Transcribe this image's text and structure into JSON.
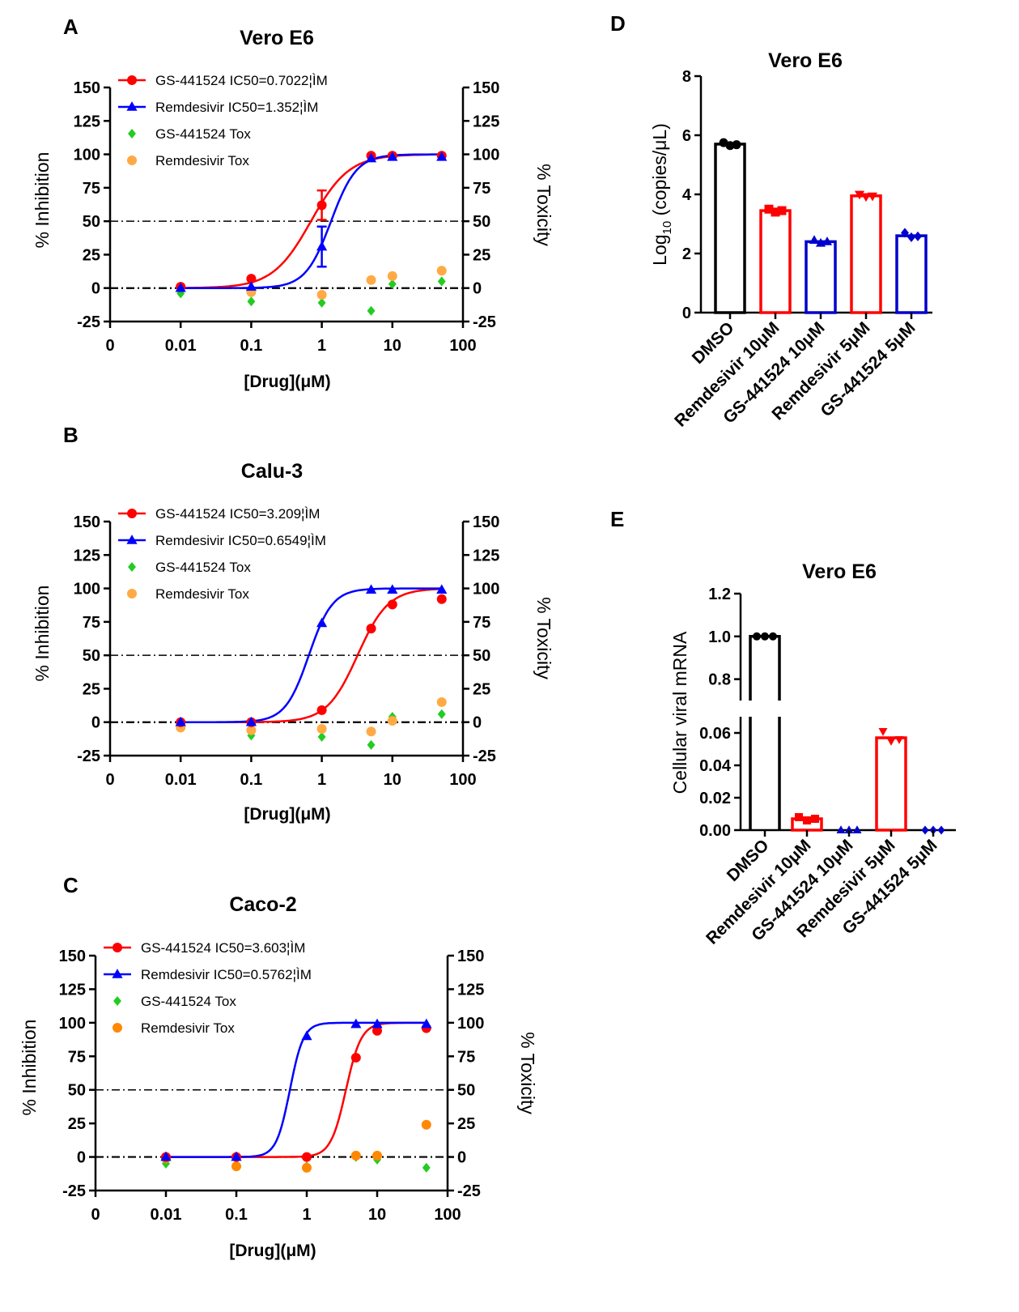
{
  "panels": [
    {
      "letter": "A",
      "title": "Vero E6",
      "xlabel": "[Drug](μM)",
      "ylabel_left": "% Inhibition",
      "ylabel_right": "% Toxicity",
      "legend": [
        {
          "label": "GS-441524 IC50=0.7022¦ÌM",
          "color": "#ff0000",
          "marker": "circle",
          "line": true
        },
        {
          "label": "Remdesivir  IC50=1.352¦ÌM",
          "color": "#0000ff",
          "marker": "triangle",
          "line": true
        },
        {
          "label": "GS-441524 Tox",
          "color": "#22cc22",
          "marker": "diamond",
          "line": false
        },
        {
          "label": "Remdesivir Tox",
          "color": "#ffaa44",
          "marker": "circle",
          "line": false
        }
      ]
    },
    {
      "letter": "B",
      "title": "Calu-3",
      "xlabel": "[Drug](μM)",
      "ylabel_left": "% Inhibition",
      "ylabel_right": "% Toxicity",
      "legend": [
        {
          "label": "GS-441524 IC50=3.209¦ÌM",
          "color": "#ff0000",
          "marker": "circle",
          "line": true
        },
        {
          "label": "Remdesivir  IC50=0.6549¦ÌM",
          "color": "#0000ff",
          "marker": "triangle",
          "line": true
        },
        {
          "label": "GS-441524 Tox",
          "color": "#22cc22",
          "marker": "diamond",
          "line": false
        },
        {
          "label": "Remdesivir Tox",
          "color": "#ffaa44",
          "marker": "circle",
          "line": false
        }
      ]
    },
    {
      "letter": "C",
      "title": "Caco-2",
      "xlabel": "[Drug](μM)",
      "ylabel_left": "% Inhibition",
      "ylabel_right": "% Toxicity",
      "legend": [
        {
          "label": "GS-441524 IC50=3.603¦ÌM",
          "color": "#ff0000",
          "marker": "circle",
          "line": true
        },
        {
          "label": "Remdesivir  IC50=0.5762¦ÌM",
          "color": "#0000ff",
          "marker": "triangle",
          "line": true
        },
        {
          "label": "GS-441524 Tox",
          "color": "#22cc22",
          "marker": "diamond",
          "line": false
        },
        {
          "label": "Remdesivir Tox",
          "color": "#ff8800",
          "marker": "circle",
          "line": false
        }
      ]
    },
    {
      "letter": "D",
      "title": "Vero E6",
      "ylabel": "Log10 (copies/μL)",
      "ylabel_parts": {
        "a": "Log",
        "sub": "10",
        "b": " (copies/μL)"
      }
    },
    {
      "letter": "E",
      "title": "Vero E6",
      "ylabel": "Cellular viral mRNA"
    }
  ],
  "chart_data": [
    {
      "type": "scatter",
      "title": "Vero E6",
      "x_scale": "log",
      "x_ticks": [
        "0",
        "0.01",
        "0.1",
        "1",
        "10",
        "100"
      ],
      "ylim": [
        -25,
        150
      ],
      "y_ticks": [
        "-25",
        "0",
        "25",
        "50",
        "75",
        "100",
        "125",
        "150"
      ],
      "y2_ticks": [
        "-25",
        "0",
        "25",
        "50",
        "75",
        "100",
        "125",
        "150"
      ],
      "reference_lines": [
        0,
        50
      ],
      "series": [
        {
          "name": "GS-441524 IC50=0.7022¦ÌM",
          "color": "#ff0000",
          "marker": "circle",
          "x": [
            0.01,
            0.1,
            1,
            5,
            10,
            50
          ],
          "y": [
            1,
            7,
            62,
            99,
            99,
            99
          ],
          "err": [
            0,
            0,
            11,
            0,
            0,
            0
          ],
          "fit": {
            "ic50": 0.7022,
            "hill": 1.6
          }
        },
        {
          "name": "Remdesivir  IC50=1.352¦ÌM",
          "color": "#0000ff",
          "marker": "triangle",
          "x": [
            0.01,
            0.1,
            1,
            5,
            10,
            50
          ],
          "y": [
            0,
            1,
            31,
            97,
            98,
            98
          ],
          "err": [
            0,
            0,
            15,
            0,
            0,
            0
          ],
          "fit": {
            "ic50": 1.352,
            "hill": 2.4
          }
        },
        {
          "name": "GS-441524 Tox",
          "color": "#22cc22",
          "marker": "diamond",
          "x": [
            0.01,
            0.1,
            1,
            5,
            10,
            50
          ],
          "y": [
            -4,
            -10,
            -11,
            -17,
            3,
            5
          ]
        },
        {
          "name": "Remdesivir Tox",
          "color": "#ffaa44",
          "marker": "circle",
          "x": [
            0.01,
            0.1,
            1,
            5,
            10,
            50
          ],
          "y": [
            1,
            -3,
            -5,
            6,
            9,
            13
          ]
        }
      ]
    },
    {
      "type": "scatter",
      "title": "Calu-3",
      "x_scale": "log",
      "x_ticks": [
        "0",
        "0.01",
        "0.1",
        "1",
        "10",
        "100"
      ],
      "ylim": [
        -25,
        150
      ],
      "y_ticks": [
        "-25",
        "0",
        "25",
        "50",
        "75",
        "100",
        "125",
        "150"
      ],
      "y2_ticks": [
        "-25",
        "0",
        "25",
        "50",
        "75",
        "100",
        "125",
        "150"
      ],
      "reference_lines": [
        0,
        50
      ],
      "series": [
        {
          "name": "GS-441524 IC50=3.209¦ÌM",
          "color": "#ff0000",
          "marker": "circle",
          "x": [
            0.01,
            0.1,
            1,
            5,
            10,
            50
          ],
          "y": [
            0,
            0,
            9,
            70,
            88,
            92
          ],
          "fit": {
            "ic50": 3.209,
            "hill": 2.0
          }
        },
        {
          "name": "Remdesivir  IC50=0.6549¦ÌM",
          "color": "#0000ff",
          "marker": "triangle",
          "x": [
            0.01,
            0.1,
            1,
            5,
            10,
            50
          ],
          "y": [
            0,
            0,
            74,
            99,
            99,
            99
          ],
          "fit": {
            "ic50": 0.6549,
            "hill": 2.6
          }
        },
        {
          "name": "GS-441524 Tox",
          "color": "#22cc22",
          "marker": "diamond",
          "x": [
            0.01,
            0.1,
            1,
            5,
            10,
            50
          ],
          "y": [
            -3,
            -10,
            -11,
            -17,
            4,
            6
          ]
        },
        {
          "name": "Remdesivir Tox",
          "color": "#ffaa44",
          "marker": "circle",
          "x": [
            0.01,
            0.1,
            1,
            5,
            10,
            50
          ],
          "y": [
            -4,
            -6,
            -5,
            -7,
            1,
            15
          ]
        }
      ]
    },
    {
      "type": "scatter",
      "title": "Caco-2",
      "x_scale": "log",
      "x_ticks": [
        "0",
        "0.01",
        "0.1",
        "1",
        "10",
        "100"
      ],
      "ylim": [
        -25,
        150
      ],
      "y_ticks": [
        "-25",
        "0",
        "25",
        "50",
        "75",
        "100",
        "125",
        "150"
      ],
      "y2_ticks": [
        "-25",
        "0",
        "25",
        "50",
        "75",
        "100",
        "125",
        "150"
      ],
      "reference_lines": [
        0,
        50
      ],
      "series": [
        {
          "name": "GS-441524 IC50=3.603¦ÌM",
          "color": "#ff0000",
          "marker": "circle",
          "x": [
            0.01,
            0.1,
            1,
            5,
            10,
            50
          ],
          "y": [
            0,
            0,
            0,
            74,
            94,
            96
          ],
          "fit": {
            "ic50": 3.603,
            "hill": 4.0
          }
        },
        {
          "name": "Remdesivir  IC50=0.5762¦ÌM",
          "color": "#0000ff",
          "marker": "triangle",
          "x": [
            0.01,
            0.1,
            1,
            5,
            10,
            50
          ],
          "y": [
            0,
            0,
            90,
            99,
            99,
            99
          ],
          "fit": {
            "ic50": 0.5762,
            "hill": 4.5
          }
        },
        {
          "name": "GS-441524 Tox",
          "color": "#22cc22",
          "marker": "diamond",
          "x": [
            0.01,
            0.1,
            1,
            5,
            10,
            50
          ],
          "y": [
            -5,
            -7,
            -7,
            0,
            -2,
            -8
          ]
        },
        {
          "name": "Remdesivir Tox",
          "color": "#ff8800",
          "marker": "circle",
          "x": [
            0.01,
            0.1,
            1,
            5,
            10,
            50
          ],
          "y": [
            -1,
            -7,
            -8,
            1,
            1,
            24
          ]
        }
      ]
    },
    {
      "type": "bar",
      "title": "Vero E6",
      "ylabel": "Log10 (copies/μL)",
      "ylim": [
        0,
        8
      ],
      "y_ticks": [
        "0",
        "2",
        "4",
        "6",
        "8"
      ],
      "categories": [
        "DMSO",
        "Remdesivir 10μM",
        "GS-441524 10μM",
        "Remdesivir 5μM",
        "GS-441524 5μM"
      ],
      "values": [
        5.7,
        3.45,
        2.4,
        3.95,
        2.6
      ],
      "colors": [
        "#000000",
        "#ff0000",
        "#0000cc",
        "#ff0000",
        "#0000cc"
      ],
      "markers": [
        "circle",
        "square",
        "triangle",
        "triangle-down",
        "diamond"
      ],
      "points": [
        [
          5.75,
          5.65,
          5.68
        ],
        [
          3.5,
          3.4,
          3.45
        ],
        [
          2.45,
          2.35,
          2.4
        ],
        [
          4.0,
          3.92,
          3.94
        ],
        [
          2.7,
          2.55,
          2.58
        ]
      ]
    },
    {
      "type": "bar",
      "title": "Vero E6",
      "ylabel": "Cellular viral mRNA",
      "axis_break": [
        0.07,
        0.7
      ],
      "ylim": [
        0,
        1.2
      ],
      "y_ticks_low": [
        "0.00",
        "0.02",
        "0.04",
        "0.06"
      ],
      "y_ticks_high": [
        "0.8",
        "1.0",
        "1.2"
      ],
      "categories": [
        "DMSO",
        "Remdesivir 10μM",
        "GS-441524 10μM",
        "Remdesivir 5μM",
        "GS-441524 5μM"
      ],
      "values": [
        1.0,
        0.007,
        0.0,
        0.057,
        0.0
      ],
      "colors": [
        "#000000",
        "#ff0000",
        "#0000cc",
        "#ff0000",
        "#0000cc"
      ],
      "markers": [
        "circle",
        "square",
        "triangle",
        "triangle-down",
        "diamond"
      ],
      "points": [
        [
          1.0,
          1.0,
          1.0
        ],
        [
          0.008,
          0.006,
          0.007
        ],
        [
          0.0,
          0.0,
          0.0
        ],
        [
          0.061,
          0.055,
          0.056
        ],
        [
          0.0,
          0.0,
          0.0
        ]
      ]
    }
  ]
}
